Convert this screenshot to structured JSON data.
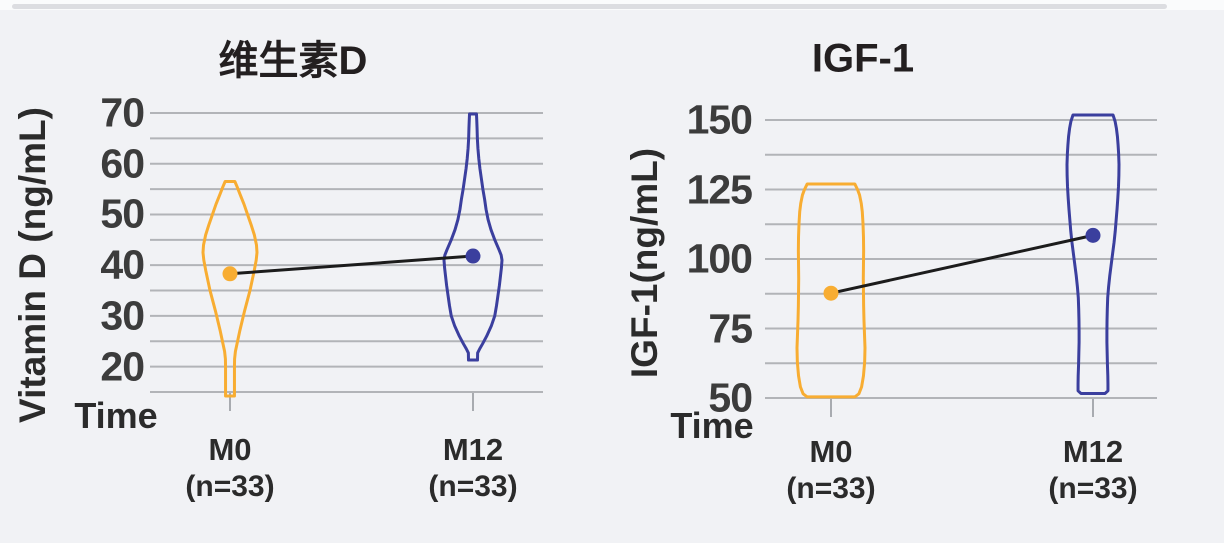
{
  "page": {
    "background_color": "#f1f2f5",
    "top_divider_color": "#dcdde1",
    "grid_color": "#b2b4b8",
    "trend_line_color": "#1c1c1c"
  },
  "chart_data": [
    {
      "type": "violin",
      "title": "维生素D",
      "xlabel": "Time",
      "ylabel": "Vitamin D (ng/mL)",
      "ylim": [
        15,
        70
      ],
      "yticks": [
        70,
        60,
        50,
        40,
        30,
        20
      ],
      "minor_grid_step": 5,
      "grid": true,
      "legend_position": "none",
      "categories": [
        {
          "label": "M0",
          "sub": "(n=33)",
          "n": 33,
          "color": "#F8AD32",
          "mean": 38.3,
          "range": [
            14.2,
            56.5
          ],
          "profile": [
            [
              56.5,
              0.18
            ],
            [
              55.5,
              0.26
            ],
            [
              54,
              0.37
            ],
            [
              52,
              0.52
            ],
            [
              50,
              0.65
            ],
            [
              48,
              0.78
            ],
            [
              46,
              0.9
            ],
            [
              44,
              0.98
            ],
            [
              42.5,
              1.0
            ],
            [
              41,
              0.97
            ],
            [
              39,
              0.9
            ],
            [
              37,
              0.82
            ],
            [
              35,
              0.74
            ],
            [
              33,
              0.64
            ],
            [
              31,
              0.54
            ],
            [
              29,
              0.45
            ],
            [
              27,
              0.36
            ],
            [
              25,
              0.28
            ],
            [
              23,
              0.2
            ],
            [
              21.5,
              0.17
            ],
            [
              20,
              0.165
            ],
            [
              17,
              0.165
            ],
            [
              14.2,
              0.165
            ]
          ]
        },
        {
          "label": "M12",
          "sub": "(n=33)",
          "n": 33,
          "color": "#3B3F9E",
          "mean": 41.8,
          "range": [
            21.3,
            69.8
          ],
          "profile": [
            [
              69.8,
              0.12
            ],
            [
              68.5,
              0.13
            ],
            [
              67,
              0.14
            ],
            [
              65,
              0.15
            ],
            [
              63,
              0.17
            ],
            [
              61,
              0.2
            ],
            [
              59,
              0.24
            ],
            [
              57,
              0.29
            ],
            [
              55,
              0.34
            ],
            [
              53,
              0.4
            ],
            [
              51,
              0.45
            ],
            [
              49,
              0.52
            ],
            [
              47,
              0.62
            ],
            [
              45,
              0.75
            ],
            [
              43,
              0.9
            ],
            [
              42,
              0.97
            ],
            [
              41,
              1.0
            ],
            [
              39.5,
              0.98
            ],
            [
              38,
              0.95
            ],
            [
              36,
              0.91
            ],
            [
              34,
              0.86
            ],
            [
              32,
              0.81
            ],
            [
              30,
              0.75
            ],
            [
              28,
              0.63
            ],
            [
              26,
              0.47
            ],
            [
              24.5,
              0.33
            ],
            [
              23.5,
              0.23
            ],
            [
              22.7,
              0.16
            ],
            [
              21.3,
              0.155
            ]
          ]
        }
      ]
    },
    {
      "type": "violin",
      "title": "IGF-1",
      "xlabel": "Time",
      "ylabel": "IGF-1(ng/mL)",
      "ylim": [
        50,
        150
      ],
      "yticks": [
        150,
        125,
        100,
        75,
        50
      ],
      "minor_grid_step": 12.5,
      "grid": true,
      "legend_position": "none",
      "categories": [
        {
          "label": "M0",
          "sub": "(n=33)",
          "n": 33,
          "color": "#F8AD32",
          "mean": 87.7,
          "range": [
            50.4,
            127
          ],
          "profile": [
            [
              127,
              0.7
            ],
            [
              125,
              0.78
            ],
            [
              123,
              0.84
            ],
            [
              120,
              0.89
            ],
            [
              117,
              0.92
            ],
            [
              113,
              0.94
            ],
            [
              108,
              0.955
            ],
            [
              103,
              0.96
            ],
            [
              98,
              0.955
            ],
            [
              93,
              0.95
            ],
            [
              88,
              0.955
            ],
            [
              83,
              0.96
            ],
            [
              78,
              0.97
            ],
            [
              73,
              0.985
            ],
            [
              68,
              1.0
            ],
            [
              63,
              0.99
            ],
            [
              58,
              0.955
            ],
            [
              54,
              0.9
            ],
            [
              51.5,
              0.82
            ],
            [
              50.4,
              0.7
            ]
          ]
        },
        {
          "label": "M12",
          "sub": "(n=33)",
          "n": 33,
          "color": "#3B3F9E",
          "mean": 108.5,
          "range": [
            51.6,
            151.8
          ],
          "profile": [
            [
              151.8,
              0.77
            ],
            [
              149.5,
              0.85
            ],
            [
              147,
              0.9
            ],
            [
              144,
              0.94
            ],
            [
              141,
              0.965
            ],
            [
              138,
              0.985
            ],
            [
              134,
              1.0
            ],
            [
              130,
              0.995
            ],
            [
              126,
              0.98
            ],
            [
              122,
              0.955
            ],
            [
              118,
              0.925
            ],
            [
              114,
              0.89
            ],
            [
              110,
              0.855
            ],
            [
              106,
              0.81
            ],
            [
              102,
              0.755
            ],
            [
              98,
              0.7
            ],
            [
              94,
              0.645
            ],
            [
              90,
              0.6
            ],
            [
              86,
              0.565
            ],
            [
              82,
              0.55
            ],
            [
              78,
              0.54
            ],
            [
              74,
              0.535
            ],
            [
              70,
              0.535
            ],
            [
              66,
              0.545
            ],
            [
              62,
              0.555
            ],
            [
              58,
              0.57
            ],
            [
              55,
              0.575
            ],
            [
              52.6,
              0.575
            ],
            [
              51.6,
              0.46
            ]
          ]
        }
      ]
    }
  ]
}
